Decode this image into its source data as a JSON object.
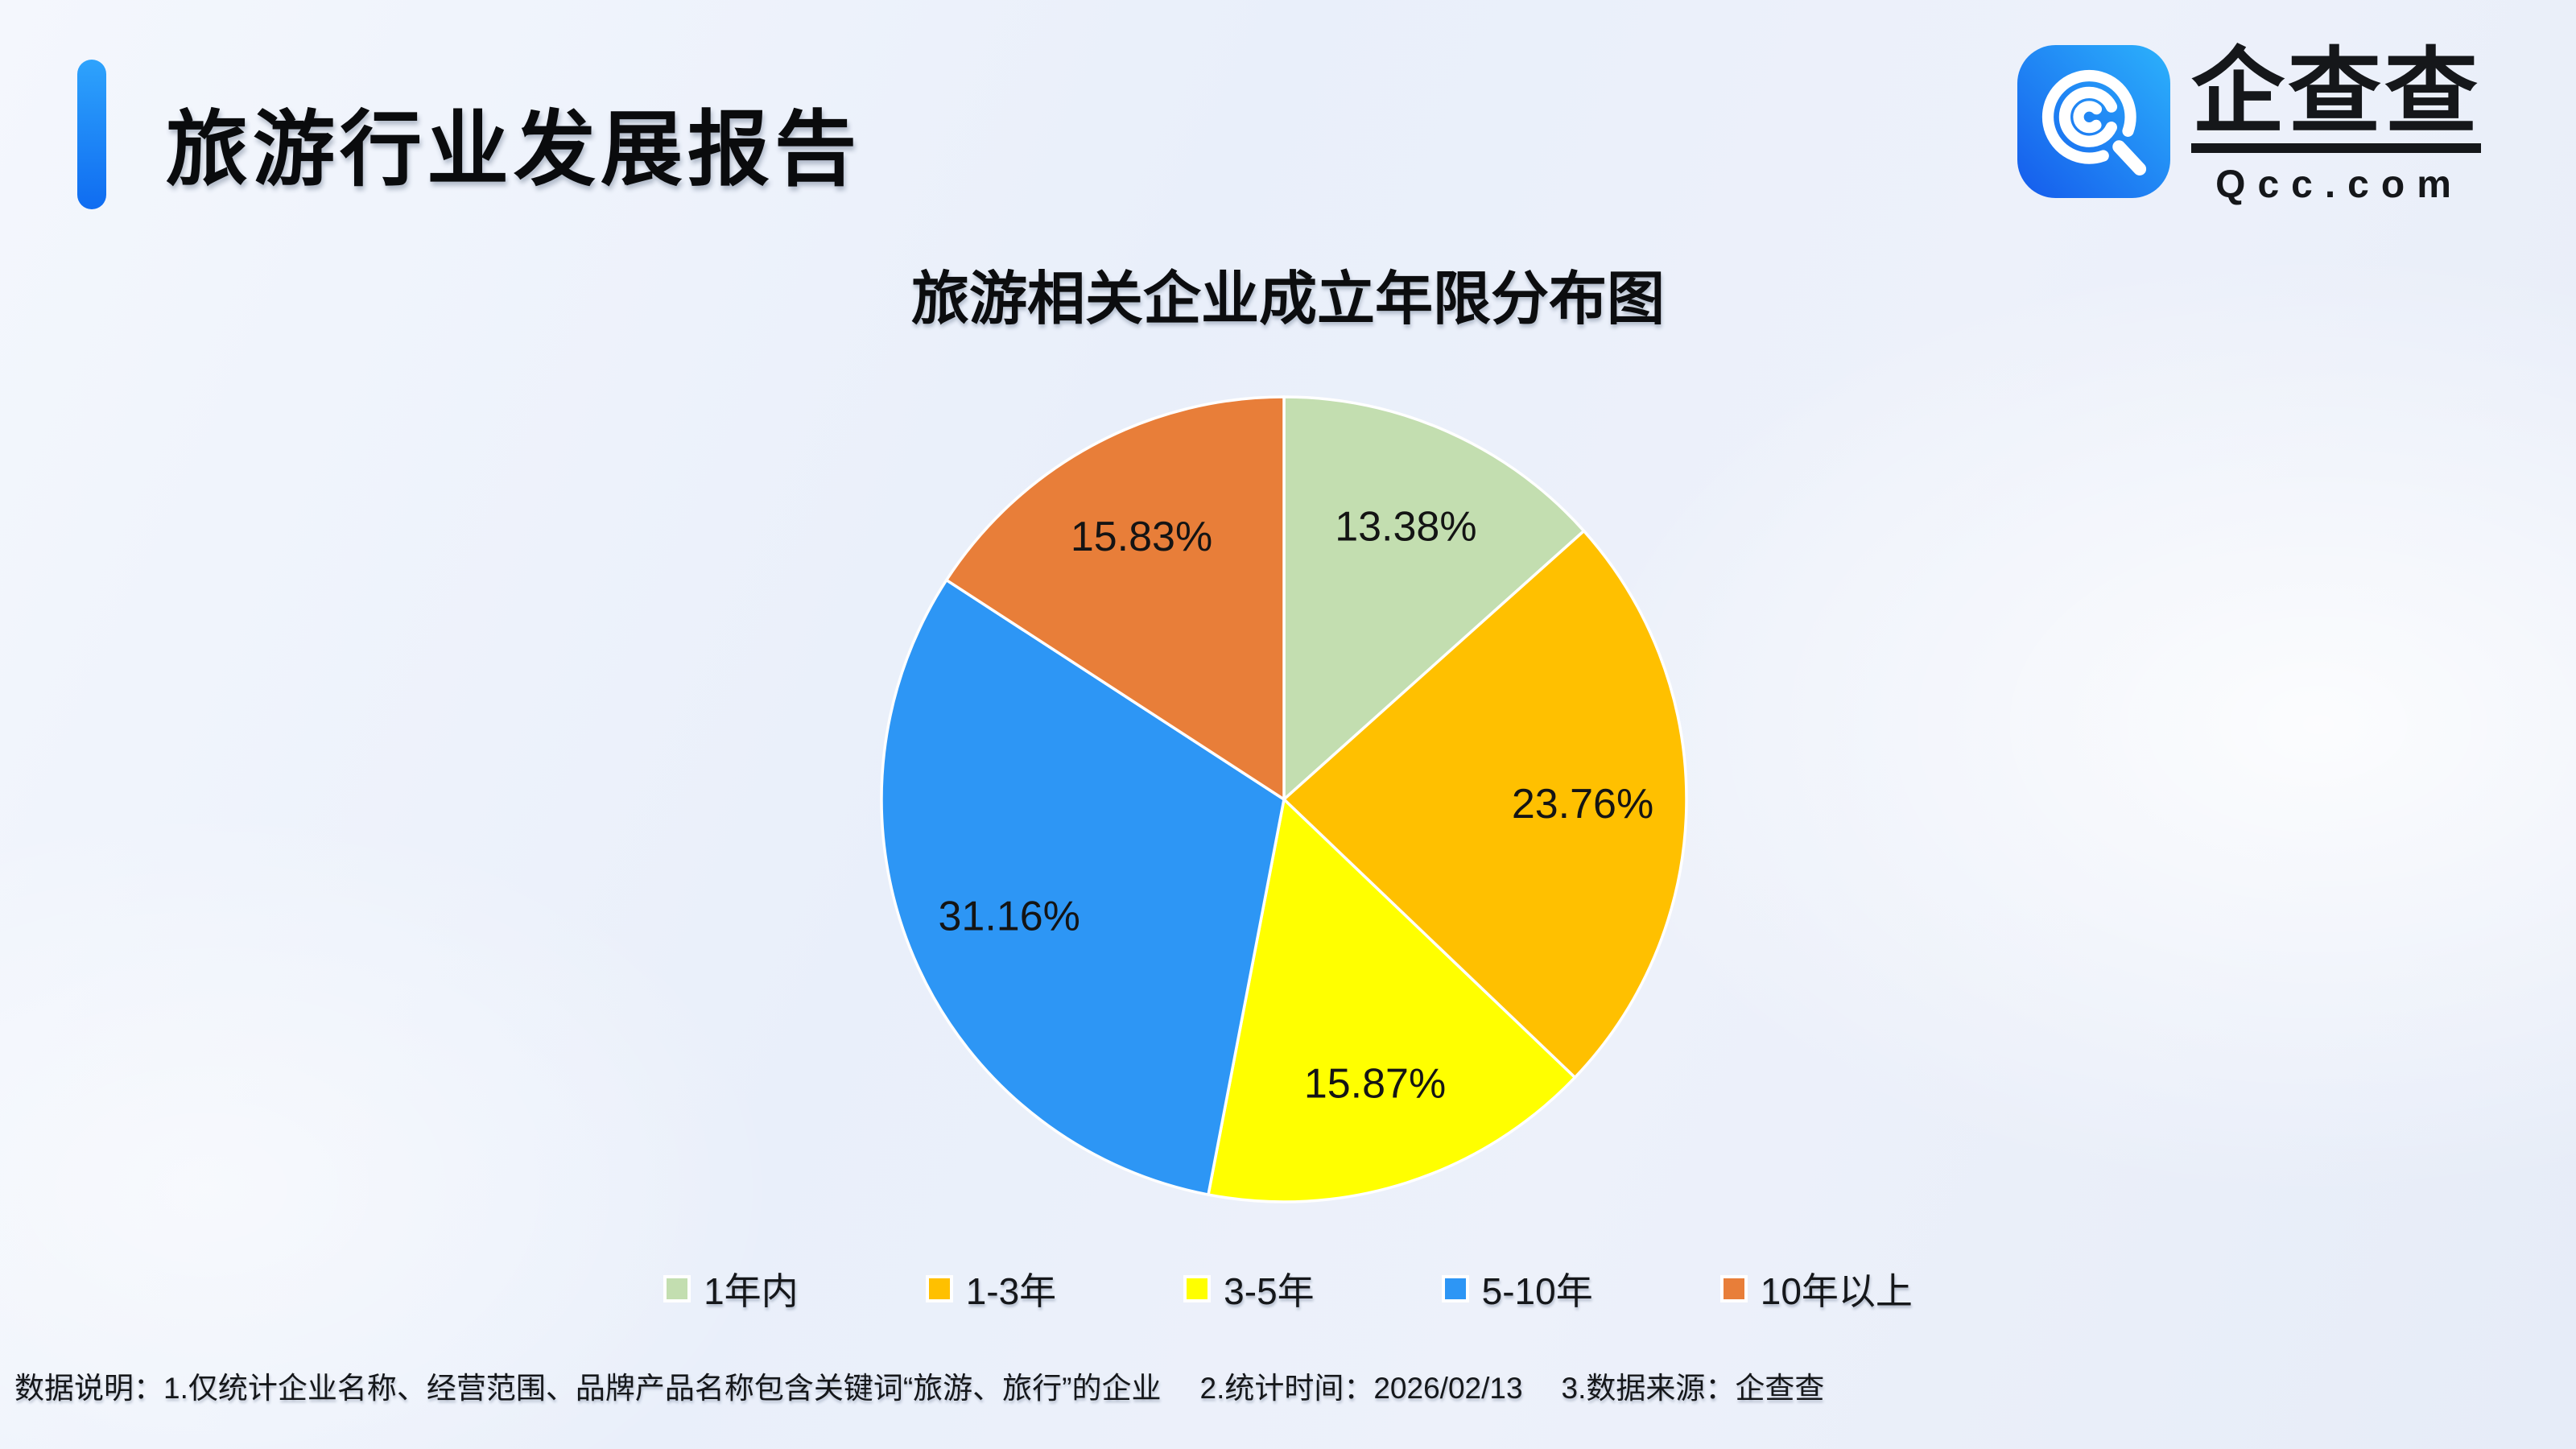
{
  "header": {
    "title": "旅游行业发展报告",
    "accent_color": "#1673f2"
  },
  "logo": {
    "brand": "企查查",
    "domain": "Qcc.com",
    "icon": "qcc-magnifier-icon",
    "icon_gradient": [
      "#155bec",
      "#2cb2fc"
    ]
  },
  "chart_data": {
    "type": "pie",
    "title": "旅游相关企业成立年限分布图",
    "categories": [
      "1年内",
      "1-3年",
      "3-5年",
      "5-10年",
      "10年以上"
    ],
    "values": [
      13.38,
      23.76,
      15.87,
      31.16,
      15.83
    ],
    "labels": [
      "13.38%",
      "23.76%",
      "15.87%",
      "31.16%",
      "15.83%"
    ],
    "colors": [
      "#c3deb0",
      "#ffc000",
      "#ffff00",
      "#2d96f5",
      "#e87e39"
    ],
    "unit": "%",
    "start_angle_deg": 0,
    "direction": "clockwise",
    "label_position": "inside",
    "legend_position": "bottom",
    "slice_border_color": "#ffffff"
  },
  "footnote": {
    "prefix": "数据说明：",
    "items": [
      "1.仅统计企业名称、经营范围、品牌产品名称包含关键词“旅游、旅行”的企业",
      "2.统计时间：2026/02/13",
      "3.数据来源：企查查"
    ]
  }
}
